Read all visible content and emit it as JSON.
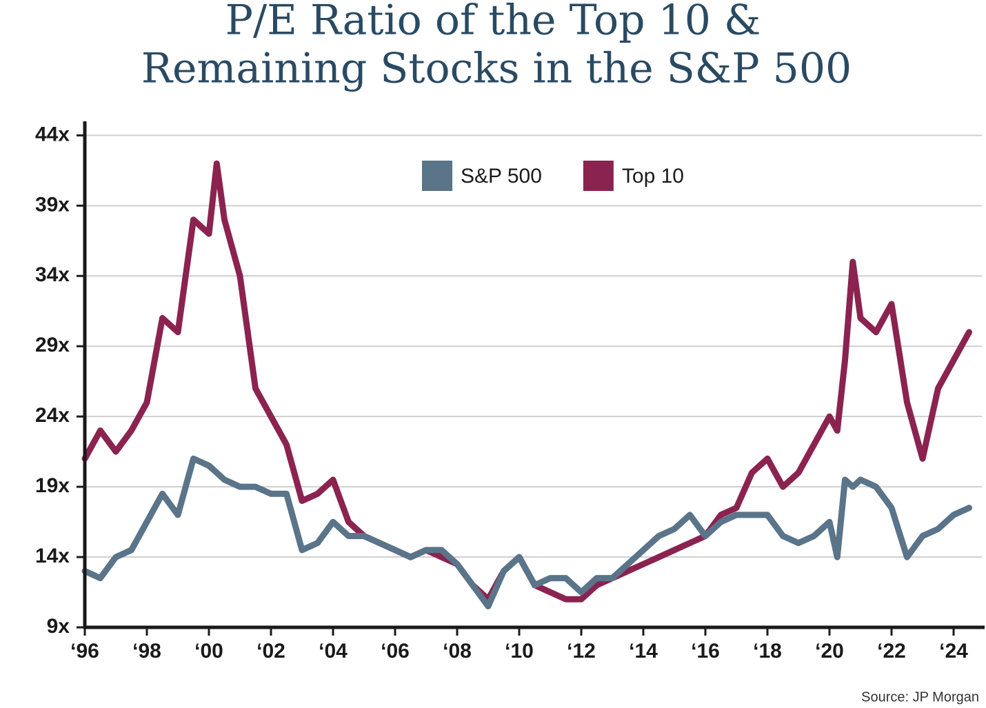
{
  "chart_data": {
    "type": "line",
    "title": [
      "P/E Ratio of the Top 10 &",
      "Remaining Stocks in the S&P 500"
    ],
    "source": "Source: JP Morgan",
    "x": [
      1996,
      1996.5,
      1997,
      1997.5,
      1998,
      1998.5,
      1999,
      1999.5,
      2000,
      2000.25,
      2000.5,
      2001,
      2001.5,
      2002,
      2002.5,
      2003,
      2003.5,
      2004,
      2004.5,
      2005,
      2005.5,
      2006,
      2006.5,
      2007,
      2007.5,
      2008,
      2008.5,
      2009,
      2009.5,
      2010,
      2010.5,
      2011,
      2011.5,
      2012,
      2012.5,
      2013,
      2013.5,
      2014,
      2014.5,
      2015,
      2015.5,
      2016,
      2016.5,
      2017,
      2017.5,
      2018,
      2018.5,
      2019,
      2019.5,
      2020,
      2020.25,
      2020.5,
      2020.75,
      2021,
      2021.5,
      2022,
      2022.5,
      2023,
      2023.5,
      2024,
      2024.5
    ],
    "series": [
      {
        "name": "S&P 500",
        "color": "#5a7489",
        "values": [
          13,
          12.5,
          14,
          14.5,
          16.5,
          18.5,
          17,
          21,
          20.5,
          20,
          19.5,
          19,
          19,
          18.5,
          18.5,
          14.5,
          15,
          16.5,
          15.5,
          15.5,
          15,
          14.5,
          14,
          14.5,
          14.5,
          13.5,
          12,
          10.5,
          13,
          14,
          12,
          12.5,
          12.5,
          11.5,
          12.5,
          12.5,
          13.5,
          14.5,
          15.5,
          16,
          17,
          15.5,
          16.5,
          17,
          17,
          17,
          15.5,
          15,
          15.5,
          16.5,
          14,
          19.5,
          19,
          19.5,
          19,
          17.5,
          14,
          15.5,
          16,
          17,
          17.5
        ]
      },
      {
        "name": "Top 10",
        "color": "#8b2350",
        "values": [
          21,
          23,
          21.5,
          23,
          25,
          31,
          30,
          38,
          37,
          42,
          38,
          34,
          26,
          24,
          22,
          18,
          18.5,
          19.5,
          16.5,
          15.5,
          15,
          14.5,
          14,
          14.5,
          14,
          13.5,
          12,
          11,
          13,
          14,
          12,
          11.5,
          11,
          11,
          12,
          12.5,
          13,
          13.5,
          14,
          14.5,
          15,
          15.5,
          17,
          17.5,
          20,
          21,
          19,
          20,
          22,
          24,
          23,
          28,
          35,
          31,
          30,
          32,
          25,
          21,
          26,
          28,
          30
        ]
      }
    ],
    "xlim": [
      1996,
      2025
    ],
    "xticks": [
      {
        "value": 1996,
        "label": "‘96"
      },
      {
        "value": 1998,
        "label": "‘98"
      },
      {
        "value": 2000,
        "label": "‘00"
      },
      {
        "value": 2002,
        "label": "‘02"
      },
      {
        "value": 2004,
        "label": "‘04"
      },
      {
        "value": 2006,
        "label": "‘06"
      },
      {
        "value": 2008,
        "label": "‘08"
      },
      {
        "value": 2010,
        "label": "‘10"
      },
      {
        "value": 2012,
        "label": "‘12"
      },
      {
        "value": 2014,
        "label": "‘14"
      },
      {
        "value": 2016,
        "label": "‘16"
      },
      {
        "value": 2018,
        "label": "‘18"
      },
      {
        "value": 2020,
        "label": "‘20"
      },
      {
        "value": 2022,
        "label": "‘22"
      },
      {
        "value": 2024,
        "label": "‘24"
      }
    ],
    "ylim": [
      9,
      45
    ],
    "yticks": [
      {
        "value": 9,
        "label": "9x"
      },
      {
        "value": 14,
        "label": "14x"
      },
      {
        "value": 19,
        "label": "19x"
      },
      {
        "value": 24,
        "label": "24x"
      },
      {
        "value": 29,
        "label": "29x"
      },
      {
        "value": 34,
        "label": "34x"
      },
      {
        "value": 39,
        "label": "39x"
      },
      {
        "value": 44,
        "label": "44x"
      }
    ],
    "grid": true,
    "legend": "top"
  }
}
